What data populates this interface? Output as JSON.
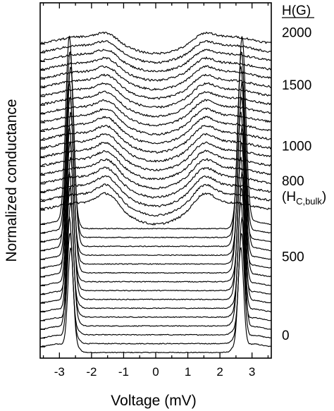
{
  "chart_data": {
    "type": "line",
    "title": "",
    "xlabel": "Voltage (mV)",
    "ylabel": "Normalized conductance",
    "xlim": [
      -3.6,
      3.6
    ],
    "xticks": [
      "-3",
      "-2",
      "-1",
      "0",
      "1",
      "2",
      "3"
    ],
    "yticks_labeled": false,
    "grid": false,
    "legend": "none",
    "curve_color": "#000000",
    "series_description": "Vertically stacked, offset conductance spectra measured at increasing magnetic field H (bottom = 0 G, top = 2000 G). Lower curves show sharp coherence peaks at about ±2.65 mV; upper curves show broad humps near ±1.5 mV around a central dip.",
    "num_curves_sharp_peak_group": 15,
    "num_curves_broad_hump_group": 20,
    "sharp_peak_voltage_mV": 2.65,
    "broad_hump_voltage_mV": 1.5,
    "field_header": "H(G)",
    "field_labels": [
      {
        "text": "2000",
        "curve_index": 34
      },
      {
        "text": "1500",
        "curve_index": 28
      },
      {
        "text": "1000",
        "curve_index": 21
      },
      {
        "text": "800",
        "curve_index": 17
      },
      {
        "text": "500",
        "curve_index": 9
      },
      {
        "text": "0",
        "curve_index": 0
      }
    ],
    "hc_label": {
      "main": "(H",
      "sub": "C,bulk",
      "close": ")"
    }
  }
}
